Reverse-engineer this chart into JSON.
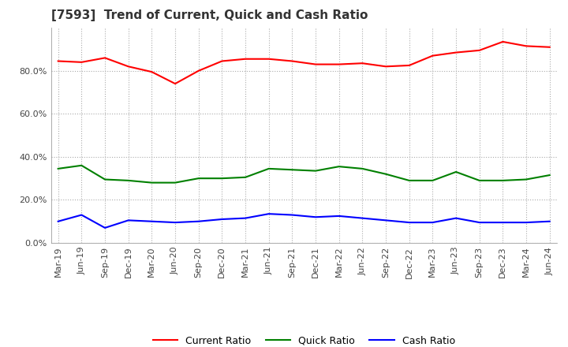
{
  "title": "[7593]  Trend of Current, Quick and Cash Ratio",
  "x_labels": [
    "Mar-19",
    "Jun-19",
    "Sep-19",
    "Dec-19",
    "Mar-20",
    "Jun-20",
    "Sep-20",
    "Dec-20",
    "Mar-21",
    "Jun-21",
    "Sep-21",
    "Dec-21",
    "Mar-22",
    "Jun-22",
    "Sep-22",
    "Dec-22",
    "Mar-23",
    "Jun-23",
    "Sep-23",
    "Dec-23",
    "Mar-24",
    "Jun-24"
  ],
  "current_ratio": [
    84.5,
    84.0,
    86.0,
    82.0,
    79.5,
    74.0,
    80.0,
    84.5,
    85.5,
    85.5,
    84.5,
    83.0,
    83.0,
    83.5,
    82.0,
    82.5,
    87.0,
    88.5,
    89.5,
    93.5,
    91.5,
    91.0
  ],
  "quick_ratio": [
    34.5,
    36.0,
    29.5,
    29.0,
    28.0,
    28.0,
    30.0,
    30.0,
    30.5,
    34.5,
    34.0,
    33.5,
    35.5,
    34.5,
    32.0,
    29.0,
    29.0,
    33.0,
    29.0,
    29.0,
    29.5,
    31.5
  ],
  "cash_ratio": [
    10.0,
    13.0,
    7.0,
    10.5,
    10.0,
    9.5,
    10.0,
    11.0,
    11.5,
    13.5,
    13.0,
    12.0,
    12.5,
    11.5,
    10.5,
    9.5,
    9.5,
    11.5,
    9.5,
    9.5,
    9.5,
    10.0
  ],
  "current_color": "#FF0000",
  "quick_color": "#008000",
  "cash_color": "#0000FF",
  "ylim": [
    0,
    100
  ],
  "yticks": [
    0,
    20,
    40,
    60,
    80
  ],
  "background_color": "#ffffff",
  "grid_color": "#aaaaaa",
  "title_fontsize": 11,
  "axis_fontsize": 8,
  "legend_fontsize": 9
}
